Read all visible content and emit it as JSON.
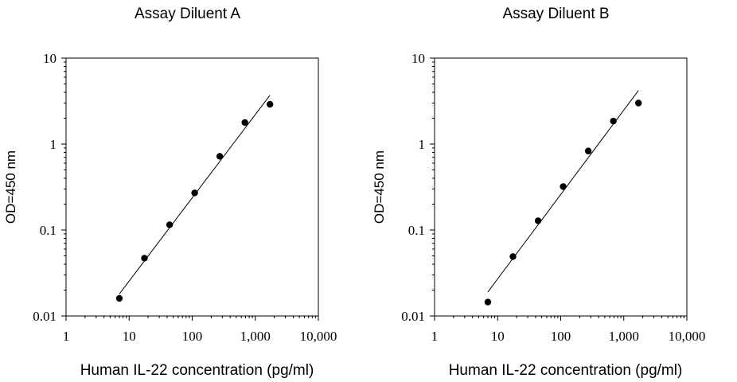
{
  "chart_data": [
    {
      "type": "scatter",
      "title": "Assay Diluent A",
      "xlabel": "Human IL-22 concentration (pg/ml)",
      "ylabel": "OD=450 nm",
      "xscale": "log",
      "yscale": "log",
      "xlim": [
        1,
        10000
      ],
      "ylim": [
        0.01,
        10
      ],
      "x_tick_labels": [
        "1",
        "10",
        "100",
        "1,000",
        "10,000"
      ],
      "y_tick_labels": [
        "0.01",
        "0.1",
        "1",
        "10"
      ],
      "grid": false,
      "legend": "none",
      "series": [
        {
          "x": [
            7,
            17.5,
            43.8,
            109.4,
            273.4,
            683.6,
            1709
          ],
          "y": [
            0.016,
            0.047,
            0.115,
            0.27,
            0.72,
            1.78,
            2.9
          ]
        }
      ],
      "fit_line": {
        "x": [
          7,
          1709
        ],
        "y": [
          0.018,
          3.7
        ]
      }
    },
    {
      "type": "scatter",
      "title": "Assay Diluent B",
      "xlabel": "Human IL-22 concentration (pg/ml)",
      "ylabel": "OD=450 nm",
      "xscale": "log",
      "yscale": "log",
      "xlim": [
        1,
        10000
      ],
      "ylim": [
        0.01,
        10
      ],
      "x_tick_labels": [
        "1",
        "10",
        "100",
        "1,000",
        "10,000"
      ],
      "y_tick_labels": [
        "0.01",
        "0.1",
        "1",
        "10"
      ],
      "grid": false,
      "legend": "none",
      "series": [
        {
          "x": [
            7,
            17.5,
            43.8,
            109.4,
            273.4,
            683.6,
            1709
          ],
          "y": [
            0.0145,
            0.049,
            0.128,
            0.32,
            0.83,
            1.85,
            3.0
          ]
        }
      ],
      "fit_line": {
        "x": [
          7,
          1709
        ],
        "y": [
          0.019,
          4.2
        ]
      }
    }
  ]
}
